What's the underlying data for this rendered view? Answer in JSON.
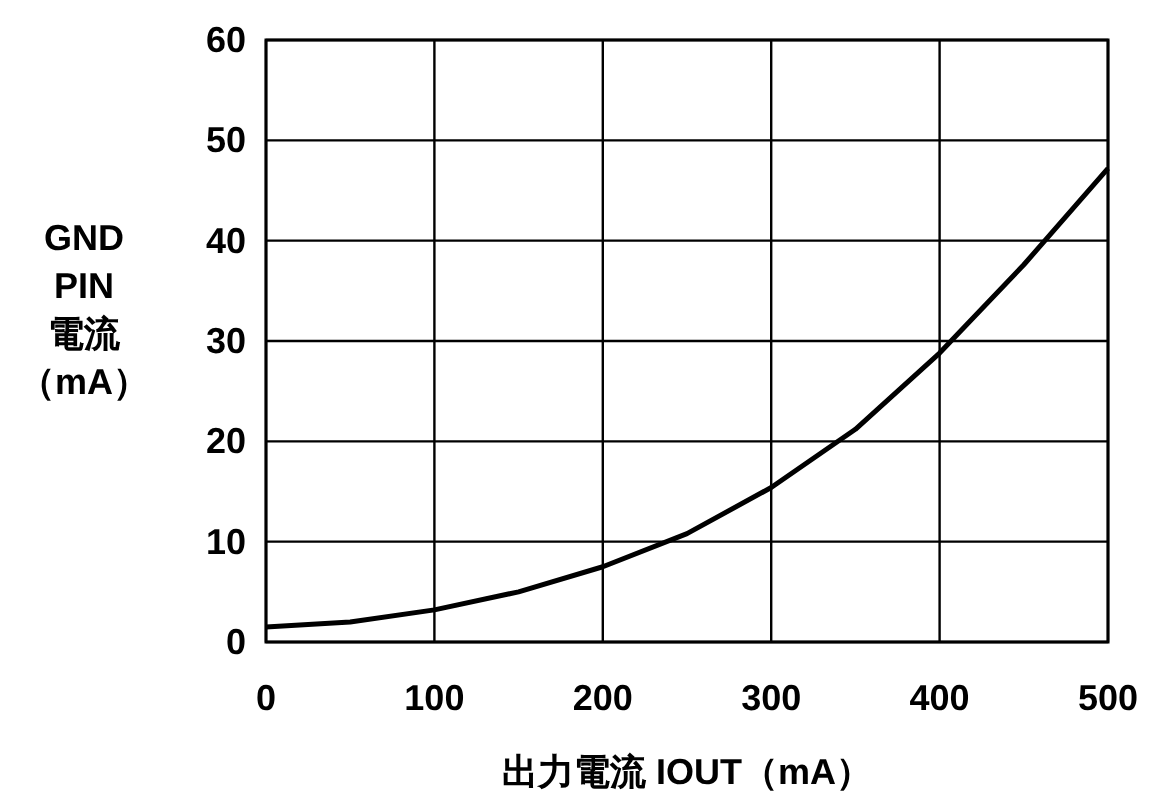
{
  "chart_data": {
    "type": "line",
    "xlabel": "出力電流 IOUT（mA）",
    "ylabel": "GND PIN電流（mA）",
    "x": [
      0,
      50,
      100,
      150,
      200,
      250,
      300,
      350,
      400,
      450,
      500
    ],
    "series": [
      {
        "color": "#000000",
        "values": [
          1.5,
          2.0,
          3.2,
          5.0,
          7.5,
          10.8,
          15.4,
          21.2,
          28.8,
          37.6,
          47.2
        ]
      }
    ],
    "xlim": [
      0,
      500
    ],
    "xticks": [
      0,
      100,
      200,
      300,
      400,
      500
    ],
    "ylim": [
      0,
      60
    ],
    "yticks": [
      0,
      10,
      20,
      30,
      40,
      50,
      60
    ],
    "grid": true
  }
}
